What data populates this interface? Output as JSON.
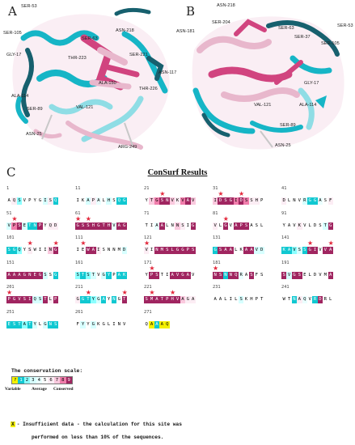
{
  "panels": {
    "a_letter": "A",
    "b_letter": "B",
    "c_letter": "C",
    "a_labels": [
      "SER-53",
      "SER-105",
      "GLY-17",
      "SER-63",
      "ASN-218",
      "THR-223",
      "SER-221",
      "ASN-117",
      "ALA-150",
      "THR-226",
      "ALA-114",
      "SER-89",
      "VAL-121",
      "ASN-25",
      "ARG-249"
    ],
    "b_labels": [
      "ASN-218",
      "ASN-181",
      "SER-204",
      "SER-63",
      "SER-37",
      "SER-105",
      "SER-53",
      "GLY-17",
      "VAL-121",
      "ALA-114",
      "SER-89",
      "ASN-25"
    ]
  },
  "consurf": {
    "title": "ConSurf Results",
    "rows": [
      {
        "blocks": [
          {
            "num": "1",
            "seq": "AQSVPYGISQ",
            "grades": [
              5,
              6,
              2,
              5,
              5,
              5,
              5,
              3,
              6,
              1
            ],
            "stars": []
          },
          {
            "num": "11",
            "seq": "IKAPALHSQG",
            "grades": [
              5,
              5,
              3,
              6,
              4,
              5,
              3,
              5,
              1,
              1
            ],
            "stars": []
          },
          {
            "num": "21",
            "seq": "YTGSNVKVAV",
            "grades": [
              5,
              7,
              8,
              9,
              9,
              7,
              6,
              8,
              9,
              7
            ],
            "stars": [
              3
            ]
          },
          {
            "num": "31",
            "seq": "IDSGIDSSHP",
            "grades": [
              7,
              9,
              9,
              9,
              8,
              9,
              8,
              6,
              6,
              5
            ],
            "stars": [
              1,
              5
            ]
          },
          {
            "num": "41",
            "seq": "DLNVRGGASF",
            "grades": [
              6,
              5,
              5,
              5,
              3,
              1,
              1,
              4,
              5,
              6
            ],
            "stars": []
          }
        ]
      },
      {
        "blocks": [
          {
            "num": "51",
            "seq": "VPSETNPYQD",
            "grades": [
              3,
              8,
              9,
              3,
              1,
              1,
              9,
              5,
              6,
              6
            ],
            "stars": [
              1
            ]
          },
          {
            "num": "61",
            "seq": "GSSHGTHVAG",
            "grades": [
              9,
              9,
              9,
              9,
              9,
              9,
              9,
              4,
              9,
              9
            ],
            "stars": [
              0,
              2
            ]
          },
          {
            "num": "71",
            "seq": "TIAALNNSIG",
            "grades": [
              5,
              5,
              4,
              9,
              5,
              5,
              7,
              6,
              5,
              9
            ],
            "stars": []
          },
          {
            "num": "81",
            "seq": "VLGVAPSASL",
            "grades": [
              6,
              5,
              9,
              5,
              9,
              9,
              9,
              5,
              5,
              5
            ],
            "stars": [
              2
            ]
          },
          {
            "num": "91",
            "seq": "YAVKVLDSTG",
            "grades": [
              5,
              5,
              5,
              6,
              5,
              5,
              5,
              5,
              3,
              9
            ],
            "stars": []
          }
        ]
      },
      {
        "blocks": [
          {
            "num": "101",
            "seq": "SGQYSWIING",
            "grades": [
              1,
              1,
              2,
              5,
              6,
              5,
              5,
              5,
              7,
              9
            ],
            "stars": [
              4,
              9
            ]
          },
          {
            "num": "111",
            "seq": "IEWAISNNMD",
            "grades": [
              5,
              5,
              9,
              9,
              6,
              5,
              5,
              5,
              5,
              3
            ],
            "stars": [
              1
            ]
          },
          {
            "num": "121",
            "seq": "VINMSLGGPS",
            "grades": [
              6,
              5,
              9,
              9,
              9,
              9,
              9,
              9,
              9,
              9
            ],
            "stars": [
              0
            ]
          },
          {
            "num": "131",
            "seq": "GSAALKAAVD",
            "grades": [
              1,
              9,
              9,
              9,
              5,
              5,
              9,
              9,
              3,
              3
            ],
            "stars": []
          },
          {
            "num": "141",
            "seq": "KAVSSGIVVA",
            "grades": [
              1,
              1,
              2,
              3,
              1,
              9,
              9,
              5,
              9,
              9
            ],
            "stars": [
              5,
              9
            ]
          }
        ]
      },
      {
        "blocks": [
          {
            "num": "151",
            "seq": "AAAGNEGSSG",
            "grades": [
              9,
              9,
              9,
              9,
              9,
              9,
              9,
              3,
              5,
              1
            ],
            "stars": []
          },
          {
            "num": "161",
            "seq": "STSTVGYPAK",
            "grades": [
              2,
              1,
              2,
              3,
              5,
              3,
              1,
              5,
              1,
              1
            ],
            "stars": []
          },
          {
            "num": "171",
            "seq": "YPSTIAVGAV",
            "grades": [
              5,
              9,
              9,
              5,
              5,
              9,
              9,
              9,
              9,
              5
            ],
            "stars": [
              1
            ]
          },
          {
            "num": "181",
            "seq": "NSNNQRASFS",
            "grades": [
              9,
              9,
              1,
              9,
              9,
              4,
              5,
              9,
              5,
              5
            ],
            "stars": [
              0
            ]
          },
          {
            "num": "191",
            "seq": "SVGSELDVMA",
            "grades": [
              9,
              3,
              9,
              9,
              5,
              5,
              5,
              5,
              5,
              9
            ],
            "stars": []
          }
        ]
      },
      {
        "blocks": [
          {
            "num": "201",
            "seq": "PGVSIQSTLP",
            "grades": [
              9,
              9,
              9,
              9,
              9,
              3,
              3,
              9,
              6,
              9
            ],
            "stars": [
              0
            ]
          },
          {
            "num": "211",
            "seq": "GGTYGAYNGT",
            "grades": [
              6,
              1,
              1,
              2,
              3,
              1,
              5,
              1,
              5,
              9
            ],
            "stars": [
              2,
              9
            ]
          },
          {
            "num": "221",
            "seq": "SMATPHVAGA",
            "grades": [
              9,
              9,
              9,
              9,
              9,
              9,
              9,
              7,
              6,
              6
            ],
            "stars": [
              1,
              5
            ]
          },
          {
            "num": "231",
            "seq": "AALILSKHPT",
            "grades": [
              5,
              5,
              5,
              5,
              5,
              3,
              5,
              5,
              5,
              5
            ],
            "stars": []
          },
          {
            "num": "241",
            "seq": "WTNAQVRDRL",
            "grades": [
              5,
              5,
              1,
              6,
              4,
              5,
              1,
              9,
              5,
              5
            ],
            "stars": []
          }
        ]
      },
      {
        "blocks": [
          {
            "num": "251",
            "seq": "ESTATYLGNS",
            "grades": [
              1,
              1,
              1,
              2,
              1,
              3,
              5,
              3,
              1,
              1
            ],
            "stars": []
          },
          {
            "num": "261",
            "seq": "FYYGKGLINV",
            "grades": [
              5,
              3,
              5,
              3,
              5,
              5,
              5,
              5,
              5,
              5
            ],
            "stars": []
          },
          {
            "num": "271",
            "seq": "QAAAQ",
            "grades": [
              5,
              0,
              1,
              0,
              0
            ],
            "stars": []
          }
        ]
      }
    ],
    "scale_title": "The conservation scale:",
    "scale_grades": [
      "?",
      "1",
      "2",
      "3",
      "4",
      "5",
      "6",
      "7",
      "8",
      "9"
    ],
    "scale_low_label": "Variable",
    "scale_mid_label": "Average",
    "scale_high_label": "Conserved",
    "insufficient_mark": "X",
    "insufficient_line1": "- Insufficient data - the calculation for this site was",
    "insufficient_line2": "performed on less than 10% of the sequences."
  },
  "colors": {
    "grade_bg": [
      "#f4f000",
      "#10c8d1",
      "#8cffff",
      "#d7ffff",
      "#eaffff",
      "#ffffff",
      "#fcedf4",
      "#fac9de",
      "#f07dab",
      "#a02560"
    ],
    "grade_fg": [
      "#000000",
      "#ffffff",
      "#000000",
      "#000000",
      "#000000",
      "#000000",
      "#000000",
      "#000000",
      "#000000",
      "#ffffff"
    ],
    "cyan": "#16b5c6",
    "pink": "#d1447f",
    "light_pink": "#e8b7cc",
    "dark_teal": "#17606e"
  }
}
